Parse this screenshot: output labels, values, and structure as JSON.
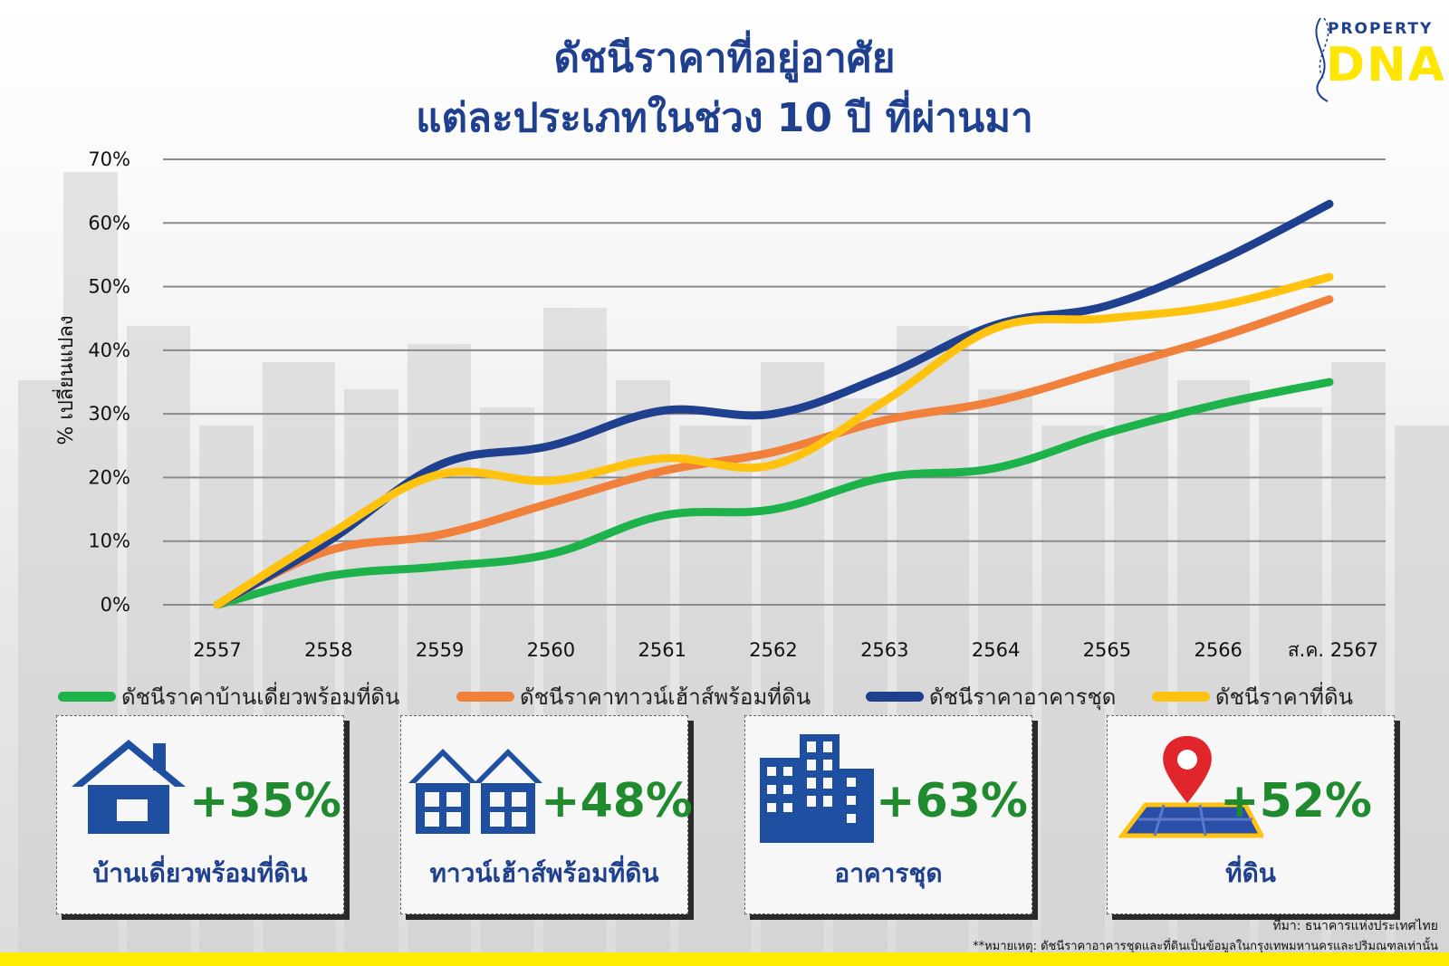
{
  "title": {
    "line1": "ดัชนีราคาที่อยู่อาศัย",
    "line2": "แต่ละประเภทในช่วง 10 ปี ที่ผ่านมา"
  },
  "logo": {
    "top": "PROPERTY",
    "bottom": "DNA"
  },
  "colors": {
    "title": "#1f3f8f",
    "green": "#1db34a",
    "orange": "#f0803a",
    "blue": "#1f3f8f",
    "yellow": "#ffc20e",
    "pct": "#1f8a2e",
    "band": "#ffec00"
  },
  "chart_data": {
    "type": "line",
    "x": [
      "2557",
      "2558",
      "2559",
      "2560",
      "2561",
      "2562",
      "2563",
      "2564",
      "2565",
      "2566",
      "ส.ค. 2567"
    ],
    "ylabel": "% เปลี่ยนแปลง",
    "ylim": [
      0,
      70
    ],
    "yticks": [
      "0%",
      "10%",
      "20%",
      "30%",
      "40%",
      "50%",
      "60%",
      "70%"
    ],
    "grid": true,
    "legend_position": "bottom",
    "series": [
      {
        "name": "ดัชนีราคาบ้านเดี่ยวพร้อมที่ดิน",
        "color": "#1db34a",
        "values": [
          0,
          4.5,
          6,
          8,
          14,
          15,
          20,
          21.5,
          27,
          31.5,
          35
        ]
      },
      {
        "name": "ดัชนีราคาทาวน์เฮ้าส์พร้อมที่ดิน",
        "color": "#f0803a",
        "values": [
          0,
          8.5,
          11,
          16,
          21,
          24,
          29,
          32,
          37,
          42,
          48
        ]
      },
      {
        "name": "ดัชนีราคาอาคารชุด",
        "color": "#1f3f8f",
        "values": [
          0,
          10,
          22,
          25,
          30.5,
          30,
          36,
          44,
          47,
          54,
          63
        ]
      },
      {
        "name": "ดัชนีราคาที่ดิน",
        "color": "#ffc20e",
        "values": [
          0,
          11,
          20.5,
          19.5,
          23,
          22,
          32,
          43.5,
          45,
          47,
          51.5
        ]
      }
    ]
  },
  "cards": [
    {
      "pct": "+35%",
      "name": "บ้านเดี่ยวพร้อมที่ดิน",
      "icon": "house-icon"
    },
    {
      "pct": "+48%",
      "name": "ทาวน์เฮ้าส์พร้อมที่ดิน",
      "icon": "townhouse-icon"
    },
    {
      "pct": "+63%",
      "name": "อาคารชุด",
      "icon": "condo-building-icon"
    },
    {
      "pct": "+52%",
      "name": "ที่ดิน",
      "icon": "land-map-pin-icon"
    }
  ],
  "footer": {
    "source": "ที่มา: ธนาคารแห่งประเทศไทย",
    "note": "**หมายเหตุ: ดัชนีราคาอาคารชุดและที่ดินเป็นข้อมูลในกรุงเทพมหานครและปริมณฑลเท่านั้น"
  }
}
